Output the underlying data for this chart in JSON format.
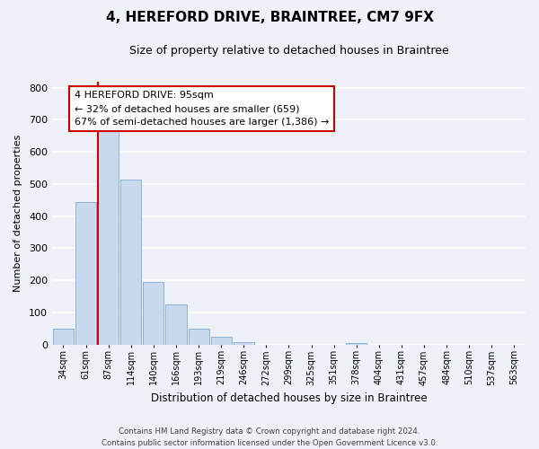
{
  "title": "4, HEREFORD DRIVE, BRAINTREE, CM7 9FX",
  "subtitle": "Size of property relative to detached houses in Braintree",
  "xlabel": "Distribution of detached houses by size in Braintree",
  "ylabel": "Number of detached properties",
  "bar_labels": [
    "34sqm",
    "61sqm",
    "87sqm",
    "114sqm",
    "140sqm",
    "166sqm",
    "193sqm",
    "219sqm",
    "246sqm",
    "272sqm",
    "299sqm",
    "325sqm",
    "351sqm",
    "378sqm",
    "404sqm",
    "431sqm",
    "457sqm",
    "484sqm",
    "510sqm",
    "537sqm",
    "563sqm"
  ],
  "bar_values": [
    50,
    445,
    665,
    515,
    195,
    125,
    48,
    25,
    8,
    0,
    0,
    0,
    0,
    5,
    0,
    0,
    0,
    0,
    0,
    0,
    0
  ],
  "bar_color": "#c8d9ee",
  "bar_edge_color": "#8ab4d9",
  "ylim": [
    0,
    820
  ],
  "yticks": [
    0,
    100,
    200,
    300,
    400,
    500,
    600,
    700,
    800
  ],
  "vline_x_index": 2,
  "vline_color": "#cc0000",
  "annotation_title": "4 HEREFORD DRIVE: 95sqm",
  "annotation_line1": "← 32% of detached houses are smaller (659)",
  "annotation_line2": "67% of semi-detached houses are larger (1,386) →",
  "annotation_box_color": "#ffffff",
  "annotation_box_edge": "#cc0000",
  "footer_line1": "Contains HM Land Registry data © Crown copyright and database right 2024.",
  "footer_line2": "Contains public sector information licensed under the Open Government Licence v3.0.",
  "bg_color": "#eef2f8",
  "plot_bg_color": "#eef2f8",
  "grid_color": "#ffffff",
  "title_fontsize": 11,
  "subtitle_fontsize": 9
}
